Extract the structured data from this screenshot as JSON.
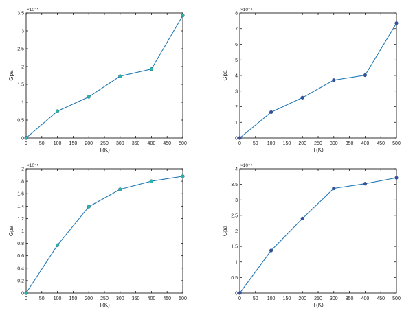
{
  "figure": {
    "colors": {
      "line": "#1f77b4",
      "axis": "#000000",
      "marker_a": "#2ab5a5",
      "marker_b": "#3b4fa0"
    }
  },
  "chart_data": [
    {
      "type": "line",
      "x": [
        0,
        100,
        200,
        300,
        400,
        500
      ],
      "series": [
        {
          "values": [
            0.0,
            0.75,
            1.15,
            1.73,
            1.93,
            3.43
          ],
          "marker_color": "#2ab5a5"
        }
      ],
      "xlabel": "T(K)",
      "ylabel": "Gpa",
      "xlim": [
        0,
        500
      ],
      "ylim": [
        0,
        3.5
      ],
      "xticks": [
        "0",
        "50",
        "100",
        "150",
        "200",
        "250",
        "300",
        "350",
        "400",
        "450",
        "500"
      ],
      "yticks": [
        "0",
        "0.5",
        "1",
        "1.5",
        "2",
        "2.5",
        "3",
        "3.5"
      ],
      "exponent_label": "×10⁻⁵",
      "grid": false
    },
    {
      "type": "line",
      "x": [
        0,
        100,
        200,
        300,
        400,
        500
      ],
      "series": [
        {
          "values": [
            0.0,
            1.65,
            2.58,
            3.7,
            4.02,
            7.35
          ],
          "marker_color": "#3b4fa0"
        }
      ],
      "xlabel": "T(K)",
      "ylabel": "Gpa",
      "xlim": [
        0,
        500
      ],
      "ylim": [
        0,
        8
      ],
      "xticks": [
        "0",
        "50",
        "100",
        "150",
        "200",
        "250",
        "300",
        "350",
        "400",
        "450",
        "500"
      ],
      "yticks": [
        "0",
        "1",
        "2",
        "3",
        "4",
        "5",
        "6",
        "7",
        "8"
      ],
      "exponent_label": "×10⁻⁴",
      "grid": false
    },
    {
      "type": "line",
      "x": [
        0,
        100,
        200,
        300,
        400,
        500
      ],
      "series": [
        {
          "values": [
            0.0,
            0.77,
            1.39,
            1.67,
            1.8,
            1.88
          ],
          "marker_color": "#2ab5a5"
        }
      ],
      "xlabel": "T(K)",
      "ylabel": "Gpa",
      "xlim": [
        0,
        500
      ],
      "ylim": [
        0,
        2
      ],
      "xticks": [
        "0",
        "50",
        "100",
        "150",
        "200",
        "250",
        "300",
        "350",
        "400",
        "450",
        "500"
      ],
      "yticks": [
        "0",
        "0.2",
        "0.4",
        "0.6",
        "0.8",
        "1",
        "1.2",
        "1.4",
        "1.6",
        "1.8",
        "2"
      ],
      "exponent_label": "×10⁻⁵",
      "grid": false
    },
    {
      "type": "line",
      "x": [
        0,
        100,
        200,
        300,
        400,
        500
      ],
      "series": [
        {
          "values": [
            0.0,
            1.37,
            2.4,
            3.37,
            3.52,
            3.71
          ],
          "marker_color": "#3b4fa0"
        }
      ],
      "xlabel": "T(K)",
      "ylabel": "Gpa",
      "xlim": [
        0,
        500
      ],
      "ylim": [
        0,
        4
      ],
      "xticks": [
        "0",
        "50",
        "100",
        "150",
        "200",
        "250",
        "300",
        "350",
        "400",
        "450",
        "500"
      ],
      "yticks": [
        "0",
        "0.5",
        "1",
        "1.5",
        "2",
        "2.5",
        "3",
        "3.5",
        "4"
      ],
      "exponent_label": "×10⁻⁴",
      "grid": false
    }
  ]
}
